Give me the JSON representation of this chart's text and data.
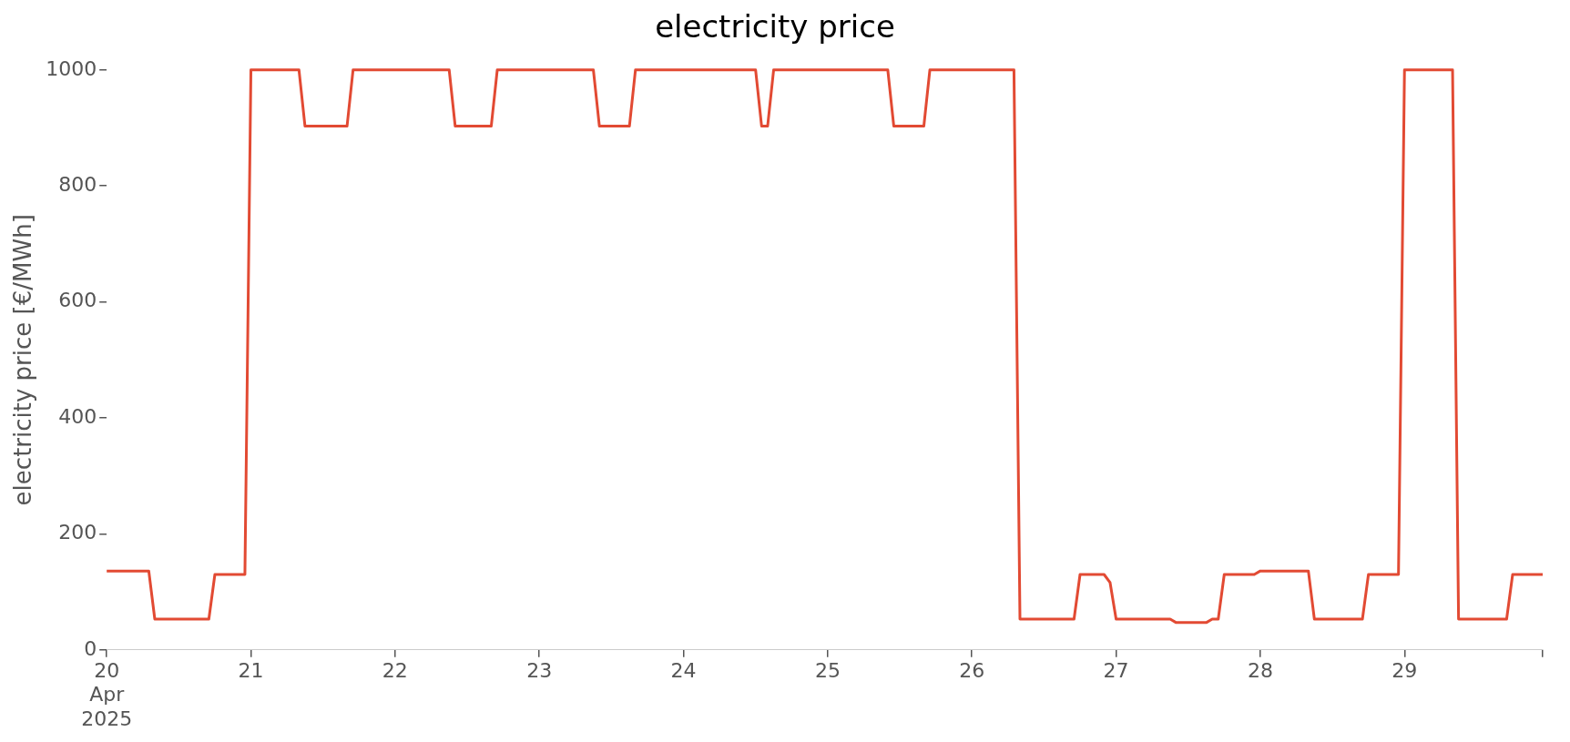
{
  "chart_data": {
    "type": "line",
    "title": "electricity price",
    "ylabel": "electricity price [€/MWh]",
    "xlim": [
      "2025-04-20T00:00",
      "2025-04-29T23:00"
    ],
    "xticks": [
      {
        "value": "2025-04-20T00:00",
        "label": "20\nApr\n2025"
      },
      {
        "value": "2025-04-21T00:00",
        "label": "21"
      },
      {
        "value": "2025-04-22T00:00",
        "label": "22"
      },
      {
        "value": "2025-04-23T00:00",
        "label": "23"
      },
      {
        "value": "2025-04-24T00:00",
        "label": "24"
      },
      {
        "value": "2025-04-25T00:00",
        "label": "25"
      },
      {
        "value": "2025-04-26T00:00",
        "label": "26"
      },
      {
        "value": "2025-04-27T00:00",
        "label": "27"
      },
      {
        "value": "2025-04-28T00:00",
        "label": "28"
      },
      {
        "value": "2025-04-29T00:00",
        "label": "29"
      },
      {
        "value": "2025-04-29T23:00",
        "label": null
      }
    ],
    "ylim": [
      0,
      1000
    ],
    "yticks": [
      0,
      200,
      400,
      600,
      800,
      1000
    ],
    "grid": false,
    "legend": false,
    "marker": "none",
    "line_style": "solid",
    "series": [
      {
        "color": "#e24a33",
        "x": [
          "2025-04-20T00:00",
          "2025-04-20T07:00",
          "2025-04-20T08:00",
          "2025-04-20T17:00",
          "2025-04-20T18:00",
          "2025-04-20T23:00",
          "2025-04-21T00:00",
          "2025-04-21T08:00",
          "2025-04-21T09:00",
          "2025-04-21T16:00",
          "2025-04-21T17:00",
          "2025-04-22T09:00",
          "2025-04-22T10:00",
          "2025-04-22T16:00",
          "2025-04-22T17:00",
          "2025-04-23T09:00",
          "2025-04-23T10:00",
          "2025-04-23T15:00",
          "2025-04-23T16:00",
          "2025-04-24T12:00",
          "2025-04-24T13:00",
          "2025-04-24T14:00",
          "2025-04-24T15:00",
          "2025-04-25T10:00",
          "2025-04-25T11:00",
          "2025-04-25T16:00",
          "2025-04-25T17:00",
          "2025-04-26T07:00",
          "2025-04-26T08:00",
          "2025-04-26T17:00",
          "2025-04-26T18:00",
          "2025-04-26T22:00",
          "2025-04-26T23:00",
          "2025-04-27T00:00",
          "2025-04-27T09:00",
          "2025-04-27T10:00",
          "2025-04-27T15:00",
          "2025-04-27T16:00",
          "2025-04-27T17:00",
          "2025-04-27T18:00",
          "2025-04-27T23:00",
          "2025-04-28T00:00",
          "2025-04-28T08:00",
          "2025-04-28T09:00",
          "2025-04-28T17:00",
          "2025-04-28T18:00",
          "2025-04-28T23:00",
          "2025-04-29T00:00",
          "2025-04-29T08:00",
          "2025-04-29T09:00",
          "2025-04-29T17:00",
          "2025-04-29T18:00",
          "2025-04-29T23:00"
        ],
        "values": [
          136,
          136,
          53,
          53,
          130,
          130,
          1000,
          1000,
          903,
          903,
          1000,
          1000,
          903,
          903,
          1000,
          1000,
          903,
          903,
          1000,
          1000,
          903,
          903,
          1000,
          1000,
          903,
          903,
          1000,
          1000,
          53,
          53,
          130,
          130,
          116,
          53,
          53,
          47,
          47,
          53,
          53,
          130,
          130,
          136,
          136,
          53,
          53,
          130,
          130,
          1000,
          1000,
          53,
          53,
          130,
          130
        ]
      }
    ]
  }
}
